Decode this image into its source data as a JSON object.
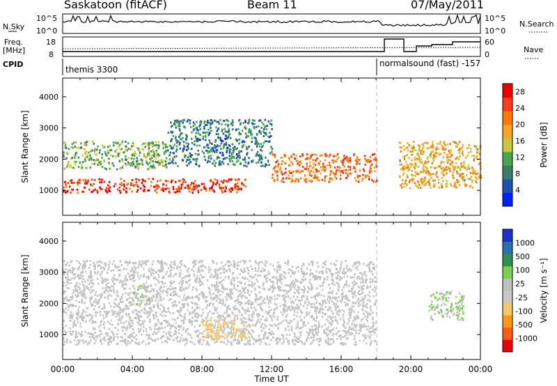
{
  "header": {
    "station": "Saskatoon (fitACF)",
    "beam": "Beam 11",
    "date": "07/May/2011"
  },
  "strip_labels": {
    "nsky": "N.Sky",
    "nsearch": "N.Search",
    "freq_line1": "Freq.",
    "freq_line2": "[MHz]",
    "nave": "Nave",
    "cpid": "CPID",
    "left_top_tick": "10^5",
    "left_bottom_tick": "10^0",
    "right_top_tick": "10^5",
    "right_bottom_tick": "10^0",
    "freq_top_tick": "18",
    "freq_bottom_tick": "8",
    "nave_top_tick": "60",
    "nave_bottom_tick": "0"
  },
  "cpid_segments": [
    {
      "label": "themis 3300"
    },
    {
      "label": "normalsound (fast) -157"
    }
  ],
  "colors": {
    "power": [
      "#0020ff",
      "#1f50b4",
      "#3a7d63",
      "#47a84b",
      "#c8c93a",
      "#f5a623",
      "#ff7a00",
      "#ff3a1a",
      "#ee0000"
    ],
    "velocity": [
      "#ee0000",
      "#ff5a14",
      "#ff9a10",
      "#f3c96a",
      "#c8c8c8",
      "#c0c0c0",
      "#7ad050",
      "#2f8f55",
      "#2a6fb0",
      "#1c2fd0"
    ]
  },
  "chart_data": [
    {
      "type": "heatmap",
      "title": "",
      "xlabel": "Time UT",
      "ylabel": "Slant Range [km]",
      "xlim": [
        "00:00",
        "24:00"
      ],
      "ylim": [
        200,
        4600
      ],
      "x_ticks": [
        "00:00",
        "04:00",
        "08:00",
        "12:00",
        "16:00",
        "20:00",
        "00:00"
      ],
      "y_ticks": [
        1000,
        2000,
        3000,
        4000
      ],
      "colorbar": {
        "label": "Power [dB]",
        "ticks": [
          4,
          8,
          12,
          16,
          20,
          24,
          28
        ],
        "range": [
          0,
          30
        ]
      },
      "regions": [
        {
          "name": "low-range layer",
          "t_start": 0.0,
          "t_end": 10.5,
          "range_km": [
            950,
            1400
          ],
          "value": 26
        },
        {
          "name": "mid-range band",
          "t_start": 0.0,
          "t_end": 6.0,
          "range_km": [
            1700,
            2600
          ],
          "value": 12
        },
        {
          "name": "arc",
          "t_start": 6.0,
          "t_end": 12.0,
          "range_km": [
            1800,
            3300
          ],
          "value": 8
        },
        {
          "name": "descending band",
          "t_start": 12.0,
          "t_end": 18.0,
          "range_km": [
            1300,
            2200
          ],
          "value": 22
        },
        {
          "name": "late echoes",
          "t_start": 19.3,
          "t_end": 24.0,
          "range_km": [
            1100,
            2600
          ],
          "value": 18
        }
      ]
    },
    {
      "type": "heatmap",
      "title": "",
      "xlabel": "Time UT",
      "ylabel": "Slant Range [km]",
      "xlim": [
        "00:00",
        "24:00"
      ],
      "ylim": [
        200,
        4600
      ],
      "x_ticks": [
        "00:00",
        "04:00",
        "08:00",
        "12:00",
        "16:00",
        "20:00",
        "00:00"
      ],
      "y_ticks": [
        1000,
        2000,
        3000,
        4000
      ],
      "colorbar": {
        "label": "Velocity [m s⁻¹]",
        "ticks": [
          1000,
          500,
          100,
          25,
          -25,
          -100,
          -500,
          -1000
        ],
        "range": [
          -1000,
          1000
        ]
      },
      "regions": [
        {
          "name": "ground scatter",
          "t_start": 0.0,
          "t_end": 18.0,
          "range_km": [
            700,
            3400
          ],
          "value": 0
        },
        {
          "name": "negative velocity patch",
          "t_start": 8.0,
          "t_end": 10.5,
          "range_km": [
            900,
            1500
          ],
          "value": -300
        },
        {
          "name": "positive velocity patch",
          "t_start": 4.0,
          "t_end": 5.0,
          "range_km": [
            2000,
            2600
          ],
          "value": 150
        },
        {
          "name": "late positive patch",
          "t_start": 21.0,
          "t_end": 23.0,
          "range_km": [
            1500,
            2400
          ],
          "value": 200
        }
      ]
    }
  ]
}
